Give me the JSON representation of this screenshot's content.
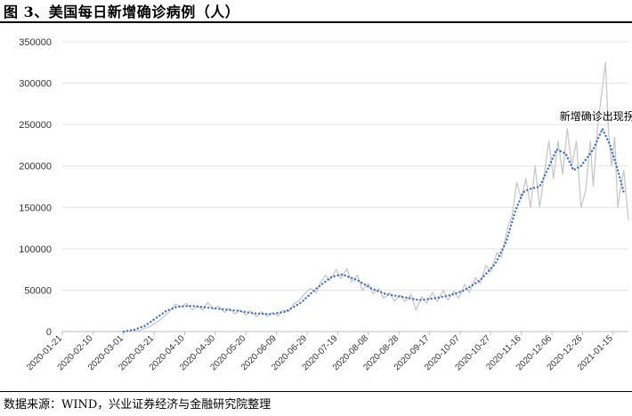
{
  "title": "图 3、美国每日新增确诊病例（人）",
  "source": "数据来源：WIND，兴业证券经济与金融研究院整理",
  "chart_data": {
    "type": "line",
    "title": "图 3、美国每日新增确诊病例（人）",
    "xlabel": "",
    "ylabel": "",
    "ylim": [
      0,
      350000
    ],
    "y_ticks": [
      "0",
      "50000",
      "100000",
      "150000",
      "200000",
      "250000",
      "300000",
      "350000"
    ],
    "x_start": "2020-01-21",
    "x_end": "2021-01-25",
    "x_ticks": [
      "2020-01-21",
      "2020-02-10",
      "2020-03-01",
      "2020-03-21",
      "2020-04-10",
      "2020-04-30",
      "2020-05-20",
      "2020-06-09",
      "2020-06-29",
      "2020-07-19",
      "2020-08-08",
      "2020-08-28",
      "2020-09-17",
      "2020-10-07",
      "2020-10-27",
      "2020-11-16",
      "2020-12-06",
      "2020-12-26",
      "2021-01-15"
    ],
    "grid": true,
    "legend": "none",
    "series": [
      {
        "style": "solid-light-gray",
        "color": "#c8c8c8",
        "points": [
          [
            "2020-01-21",
            0
          ],
          [
            "2020-03-01",
            0
          ],
          [
            "2020-03-11",
            1000
          ],
          [
            "2020-03-18",
            6000
          ],
          [
            "2020-03-25",
            14000
          ],
          [
            "2020-04-01",
            26000
          ],
          [
            "2020-04-04",
            33000
          ],
          [
            "2020-04-08",
            30000
          ],
          [
            "2020-04-11",
            34000
          ],
          [
            "2020-04-15",
            26000
          ],
          [
            "2020-04-18",
            31000
          ],
          [
            "2020-04-22",
            26000
          ],
          [
            "2020-04-25",
            35000
          ],
          [
            "2020-04-29",
            27000
          ],
          [
            "2020-05-02",
            31000
          ],
          [
            "2020-05-06",
            23000
          ],
          [
            "2020-05-09",
            28000
          ],
          [
            "2020-05-13",
            21000
          ],
          [
            "2020-05-16",
            26000
          ],
          [
            "2020-05-20",
            20000
          ],
          [
            "2020-05-23",
            25000
          ],
          [
            "2020-05-27",
            18000
          ],
          [
            "2020-05-30",
            24000
          ],
          [
            "2020-06-03",
            18000
          ],
          [
            "2020-06-06",
            23000
          ],
          [
            "2020-06-10",
            19000
          ],
          [
            "2020-06-13",
            26000
          ],
          [
            "2020-06-17",
            24000
          ],
          [
            "2020-06-20",
            33000
          ],
          [
            "2020-06-24",
            38000
          ],
          [
            "2020-06-27",
            45000
          ],
          [
            "2020-07-01",
            52000
          ],
          [
            "2020-07-05",
            47000
          ],
          [
            "2020-07-08",
            60000
          ],
          [
            "2020-07-11",
            68000
          ],
          [
            "2020-07-14",
            62000
          ],
          [
            "2020-07-18",
            75000
          ],
          [
            "2020-07-21",
            64000
          ],
          [
            "2020-07-25",
            76000
          ],
          [
            "2020-07-28",
            60000
          ],
          [
            "2020-08-01",
            68000
          ],
          [
            "2020-08-04",
            50000
          ],
          [
            "2020-08-08",
            58000
          ],
          [
            "2020-08-11",
            46000
          ],
          [
            "2020-08-15",
            52000
          ],
          [
            "2020-08-18",
            40000
          ],
          [
            "2020-08-22",
            47000
          ],
          [
            "2020-08-25",
            37000
          ],
          [
            "2020-08-29",
            44000
          ],
          [
            "2020-09-01",
            36000
          ],
          [
            "2020-09-05",
            45000
          ],
          [
            "2020-09-08",
            26000
          ],
          [
            "2020-09-12",
            42000
          ],
          [
            "2020-09-15",
            34000
          ],
          [
            "2020-09-19",
            47000
          ],
          [
            "2020-09-22",
            36000
          ],
          [
            "2020-09-26",
            50000
          ],
          [
            "2020-09-29",
            38000
          ],
          [
            "2020-10-03",
            49000
          ],
          [
            "2020-10-06",
            40000
          ],
          [
            "2020-10-10",
            57000
          ],
          [
            "2020-10-13",
            47000
          ],
          [
            "2020-10-17",
            65000
          ],
          [
            "2020-10-20",
            58000
          ],
          [
            "2020-10-24",
            80000
          ],
          [
            "2020-10-27",
            72000
          ],
          [
            "2020-10-31",
            95000
          ],
          [
            "2020-11-03",
            90000
          ],
          [
            "2020-11-07",
            125000
          ],
          [
            "2020-11-10",
            140000
          ],
          [
            "2020-11-13",
            180000
          ],
          [
            "2020-11-16",
            160000
          ],
          [
            "2020-11-19",
            185000
          ],
          [
            "2020-11-22",
            150000
          ],
          [
            "2020-11-25",
            200000
          ],
          [
            "2020-11-28",
            150000
          ],
          [
            "2020-12-01",
            190000
          ],
          [
            "2020-12-04",
            230000
          ],
          [
            "2020-12-07",
            185000
          ],
          [
            "2020-12-10",
            230000
          ],
          [
            "2020-12-13",
            190000
          ],
          [
            "2020-12-16",
            245000
          ],
          [
            "2020-12-19",
            200000
          ],
          [
            "2020-12-22",
            230000
          ],
          [
            "2020-12-25",
            150000
          ],
          [
            "2020-12-28",
            170000
          ],
          [
            "2020-12-31",
            230000
          ],
          [
            "2021-01-02",
            175000
          ],
          [
            "2021-01-05",
            250000
          ],
          [
            "2021-01-07",
            280000
          ],
          [
            "2021-01-09",
            310000
          ],
          [
            "2021-01-10",
            325000
          ],
          [
            "2021-01-12",
            240000
          ],
          [
            "2021-01-14",
            200000
          ],
          [
            "2021-01-16",
            235000
          ],
          [
            "2021-01-18",
            150000
          ],
          [
            "2021-01-20",
            175000
          ],
          [
            "2021-01-22",
            195000
          ],
          [
            "2021-01-25",
            135000
          ]
        ]
      },
      {
        "style": "dotted-blue",
        "color": "#4472c4",
        "points": [
          [
            "2020-03-01",
            0
          ],
          [
            "2020-03-08",
            2000
          ],
          [
            "2020-03-15",
            7000
          ],
          [
            "2020-03-22",
            16000
          ],
          [
            "2020-03-29",
            25000
          ],
          [
            "2020-04-05",
            30000
          ],
          [
            "2020-04-15",
            31000
          ],
          [
            "2020-04-25",
            29000
          ],
          [
            "2020-05-05",
            27000
          ],
          [
            "2020-05-15",
            25000
          ],
          [
            "2020-05-25",
            22000
          ],
          [
            "2020-06-05",
            21000
          ],
          [
            "2020-06-15",
            24000
          ],
          [
            "2020-06-25",
            35000
          ],
          [
            "2020-07-05",
            52000
          ],
          [
            "2020-07-15",
            66000
          ],
          [
            "2020-07-22",
            69000
          ],
          [
            "2020-08-01",
            62000
          ],
          [
            "2020-08-10",
            52000
          ],
          [
            "2020-08-20",
            45000
          ],
          [
            "2020-08-30",
            42000
          ],
          [
            "2020-09-10",
            38000
          ],
          [
            "2020-09-20",
            40000
          ],
          [
            "2020-10-01",
            44000
          ],
          [
            "2020-10-10",
            50000
          ],
          [
            "2020-10-20",
            62000
          ],
          [
            "2020-10-30",
            82000
          ],
          [
            "2020-11-06",
            108000
          ],
          [
            "2020-11-12",
            145000
          ],
          [
            "2020-11-17",
            168000
          ],
          [
            "2020-11-21",
            172000
          ],
          [
            "2020-11-28",
            175000
          ],
          [
            "2020-12-03",
            195000
          ],
          [
            "2020-12-09",
            220000
          ],
          [
            "2020-12-15",
            215000
          ],
          [
            "2020-12-20",
            195000
          ],
          [
            "2020-12-25",
            200000
          ],
          [
            "2021-01-02",
            220000
          ],
          [
            "2021-01-08",
            245000
          ],
          [
            "2021-01-13",
            225000
          ],
          [
            "2021-01-18",
            195000
          ],
          [
            "2021-01-22",
            168000
          ]
        ]
      }
    ],
    "annotations": [
      {
        "text": "新增确诊出现拐点",
        "at": [
          "2021-01-08",
          245000
        ]
      }
    ]
  }
}
